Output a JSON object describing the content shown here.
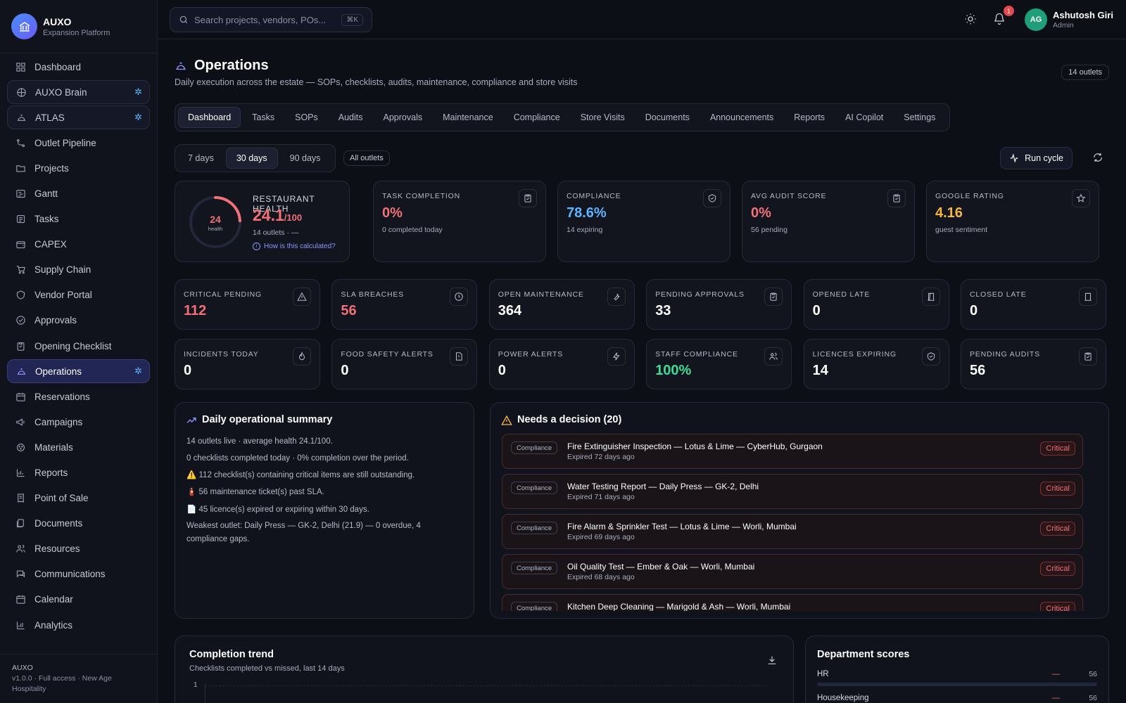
{
  "brand": {
    "name": "AUXO",
    "sub": "Expansion Platform"
  },
  "sidebar": {
    "items": [
      {
        "label": "Dashboard",
        "icon": "grid-icon"
      },
      {
        "label": "AUXO Brain",
        "icon": "brain-icon"
      },
      {
        "label": "ATLAS",
        "icon": "atlas-icon"
      },
      {
        "label": "Outlet Pipeline",
        "icon": "pipeline-icon"
      },
      {
        "label": "Projects",
        "icon": "folder-icon"
      },
      {
        "label": "Gantt",
        "icon": "gantt-icon"
      },
      {
        "label": "Tasks",
        "icon": "tasks-icon"
      },
      {
        "label": "CAPEX",
        "icon": "wallet-icon"
      },
      {
        "label": "Supply Chain",
        "icon": "cart-icon"
      },
      {
        "label": "Vendor Portal",
        "icon": "vendor-icon"
      },
      {
        "label": "Approvals",
        "icon": "check-circle-icon"
      },
      {
        "label": "Opening Checklist",
        "icon": "clipboard-icon"
      },
      {
        "label": "Operations",
        "icon": "bell-service-icon"
      },
      {
        "label": "Reservations",
        "icon": "calendar-icon"
      },
      {
        "label": "Campaigns",
        "icon": "megaphone-icon"
      },
      {
        "label": "Materials",
        "icon": "materials-icon"
      },
      {
        "label": "Reports",
        "icon": "bar-chart-icon"
      },
      {
        "label": "Point of Sale",
        "icon": "receipt-icon"
      },
      {
        "label": "Documents",
        "icon": "documents-icon"
      },
      {
        "label": "Resources",
        "icon": "users-icon"
      },
      {
        "label": "Communications",
        "icon": "chat-icon"
      },
      {
        "label": "Calendar",
        "icon": "calendar-icon"
      },
      {
        "label": "Analytics",
        "icon": "analytics-icon"
      }
    ],
    "footer": {
      "title": "AUXO",
      "line1": "v1.0.0 · Full access · New Age",
      "line2": "Hospitality"
    }
  },
  "search": {
    "placeholder": "Search projects, vendors, POs...",
    "shortcut": "⌘K"
  },
  "user": {
    "name": "Ashutosh Giri",
    "role": "Admin",
    "initials": "AG",
    "notifications": "1"
  },
  "page": {
    "title": "Operations",
    "subtitle": "Daily execution across the estate — SOPs, checklists, audits, maintenance, compliance and store visits",
    "outlets_chip": "14 outlets"
  },
  "tabs": [
    "Dashboard",
    "Tasks",
    "SOPs",
    "Audits",
    "Approvals",
    "Maintenance",
    "Compliance",
    "Store Visits",
    "Documents",
    "Announcements",
    "Reports",
    "AI Copilot",
    "Settings"
  ],
  "ranges": [
    "7 days",
    "30 days",
    "90 days"
  ],
  "filter_all": "All outlets",
  "run_cycle": "Run cycle",
  "health": {
    "label": "RESTAURANT HEALTH",
    "score": "24",
    "score_sub": "health",
    "value": "24.1",
    "max": "/100",
    "sub": "14 outlets · —",
    "link": "How is this calculated?",
    "fraction": 0.241
  },
  "top_cards": [
    {
      "label": "TASK COMPLETION",
      "value": "0%",
      "sub": "0 completed today",
      "color": "#f07178",
      "icon": "clipboard-check-icon"
    },
    {
      "label": "COMPLIANCE",
      "value": "78.6%",
      "sub": "14 expiring",
      "color": "#5ab4ff",
      "icon": "shield-check-icon"
    },
    {
      "label": "AVG AUDIT SCORE",
      "value": "0%",
      "sub": "56 pending",
      "color": "#f07178",
      "icon": "clipboard-check-icon"
    },
    {
      "label": "GOOGLE RATING",
      "value": "4.16",
      "sub": "guest sentiment",
      "color": "#f5b544",
      "icon": "star-icon"
    }
  ],
  "kpis_row1": [
    {
      "label": "CRITICAL PENDING",
      "value": "112",
      "color": "#f07178",
      "icon": "warning-icon"
    },
    {
      "label": "SLA BREACHES",
      "value": "56",
      "color": "#f07178",
      "icon": "clock-icon"
    },
    {
      "label": "OPEN MAINTENANCE",
      "value": "364",
      "color": "#ffffff",
      "icon": "wrench-icon"
    },
    {
      "label": "PENDING APPROVALS",
      "value": "33",
      "color": "#ffffff",
      "icon": "clipboard-check-icon"
    },
    {
      "label": "OPENED LATE",
      "value": "0",
      "color": "#ffffff",
      "icon": "door-open-icon"
    },
    {
      "label": "CLOSED LATE",
      "value": "0",
      "color": "#ffffff",
      "icon": "door-closed-icon"
    }
  ],
  "kpis_row2": [
    {
      "label": "INCIDENTS TODAY",
      "value": "0",
      "color": "#ffffff",
      "icon": "flame-icon"
    },
    {
      "label": "FOOD SAFETY ALERTS",
      "value": "0",
      "color": "#ffffff",
      "icon": "file-alert-icon"
    },
    {
      "label": "POWER ALERTS",
      "value": "0",
      "color": "#ffffff",
      "icon": "lightning-icon"
    },
    {
      "label": "STAFF COMPLIANCE",
      "value": "100%",
      "color": "#3ddc97",
      "icon": "users-icon"
    },
    {
      "label": "LICENCES EXPIRING",
      "value": "14",
      "color": "#ffffff",
      "icon": "shield-check-icon"
    },
    {
      "label": "PENDING AUDITS",
      "value": "56",
      "color": "#ffffff",
      "icon": "clipboard-check-icon"
    }
  ],
  "summary": {
    "title": "Daily operational summary",
    "lines": [
      "14 outlets live · average health 24.1/100.",
      "0 checklists completed today · 0% completion over the period.",
      "⚠️ 112 checklist(s) containing critical items are still outstanding.",
      "🧯 56 maintenance ticket(s) past SLA.",
      "📄 45 licence(s) expired or expiring within 30 days.",
      "Weakest outlet: Daily Press — GK-2, Delhi (21.9) — 0 overdue, 4 compliance gaps."
    ]
  },
  "decisions": {
    "title": "Needs a decision (20)",
    "items": [
      {
        "tag": "Compliance",
        "title": "Fire Extinguisher Inspection — Lotus & Lime — CyberHub, Gurgaon",
        "sub": "Expired 72 days ago",
        "badge": "Critical"
      },
      {
        "tag": "Compliance",
        "title": "Water Testing Report — Daily Press — GK-2, Delhi",
        "sub": "Expired 71 days ago",
        "badge": "Critical"
      },
      {
        "tag": "Compliance",
        "title": "Fire Alarm & Sprinkler Test — Lotus & Lime — Worli, Mumbai",
        "sub": "Expired 69 days ago",
        "badge": "Critical"
      },
      {
        "tag": "Compliance",
        "title": "Oil Quality Test — Ember & Oak — Worli, Mumbai",
        "sub": "Expired 68 days ago",
        "badge": "Critical"
      },
      {
        "tag": "Compliance",
        "title": "Kitchen Deep Cleaning — Marigold & Ash — Worli, Mumbai",
        "sub": "",
        "badge": "Critical"
      }
    ]
  },
  "trend": {
    "title": "Completion trend",
    "sub": "Checklists completed vs missed, last 14 days",
    "tick": "1"
  },
  "departments": {
    "title": "Department scores",
    "items": [
      {
        "name": "HR",
        "dash": "—",
        "score": "56"
      },
      {
        "name": "Housekeeping",
        "dash": "—",
        "score": "56"
      }
    ]
  }
}
